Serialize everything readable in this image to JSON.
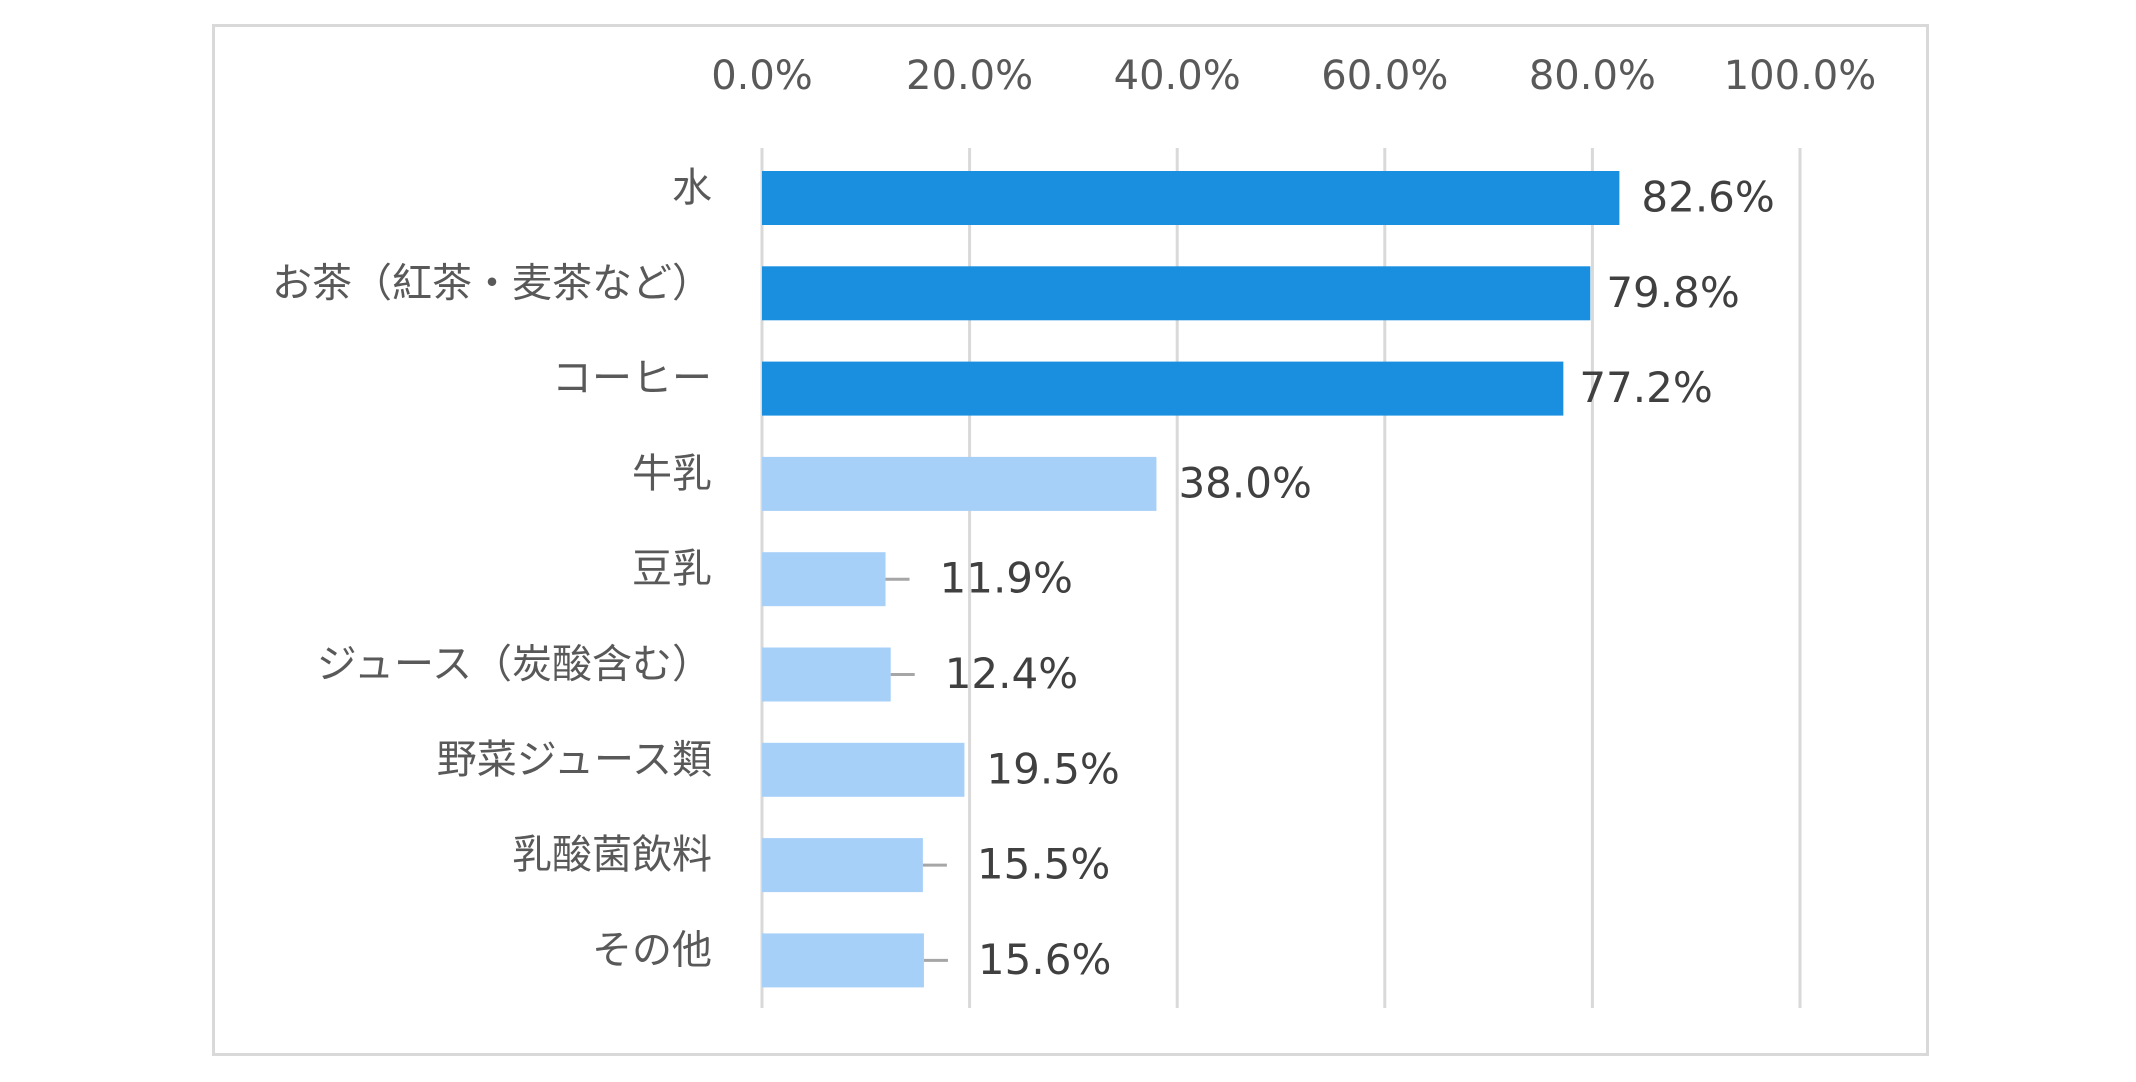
{
  "chart_data": {
    "type": "bar",
    "orientation": "horizontal",
    "categories": [
      "水",
      "お茶（紅茶・麦茶など）",
      "コーヒー",
      "牛乳",
      "豆乳",
      "ジュース（炭酸含む）",
      "野菜ジュース類",
      "乳酸菌飲料",
      "その他"
    ],
    "values": [
      82.6,
      79.8,
      77.2,
      38.0,
      11.9,
      12.4,
      19.5,
      15.5,
      15.6
    ],
    "data_labels": [
      "82.6%",
      "79.8%",
      "77.2%",
      "38.0%",
      "11.9%",
      "12.4%",
      "19.5%",
      "15.5%",
      "15.6%"
    ],
    "highlight_count": 3,
    "colors": {
      "highlight": "#1a8fdf",
      "normal": "#a7d0f8",
      "grid": "#d9d9d9",
      "leader": "#a6a6a6"
    },
    "xlim": [
      0,
      100
    ],
    "x_ticks": [
      0,
      20,
      40,
      60,
      80,
      100
    ],
    "x_tick_labels": [
      "0.0%",
      "20.0%",
      "40.0%",
      "60.0%",
      "80.0%",
      "100.0%"
    ],
    "x_axis_position": "top",
    "grid": true,
    "legend": "none",
    "title": "",
    "xlabel": "",
    "ylabel": ""
  }
}
